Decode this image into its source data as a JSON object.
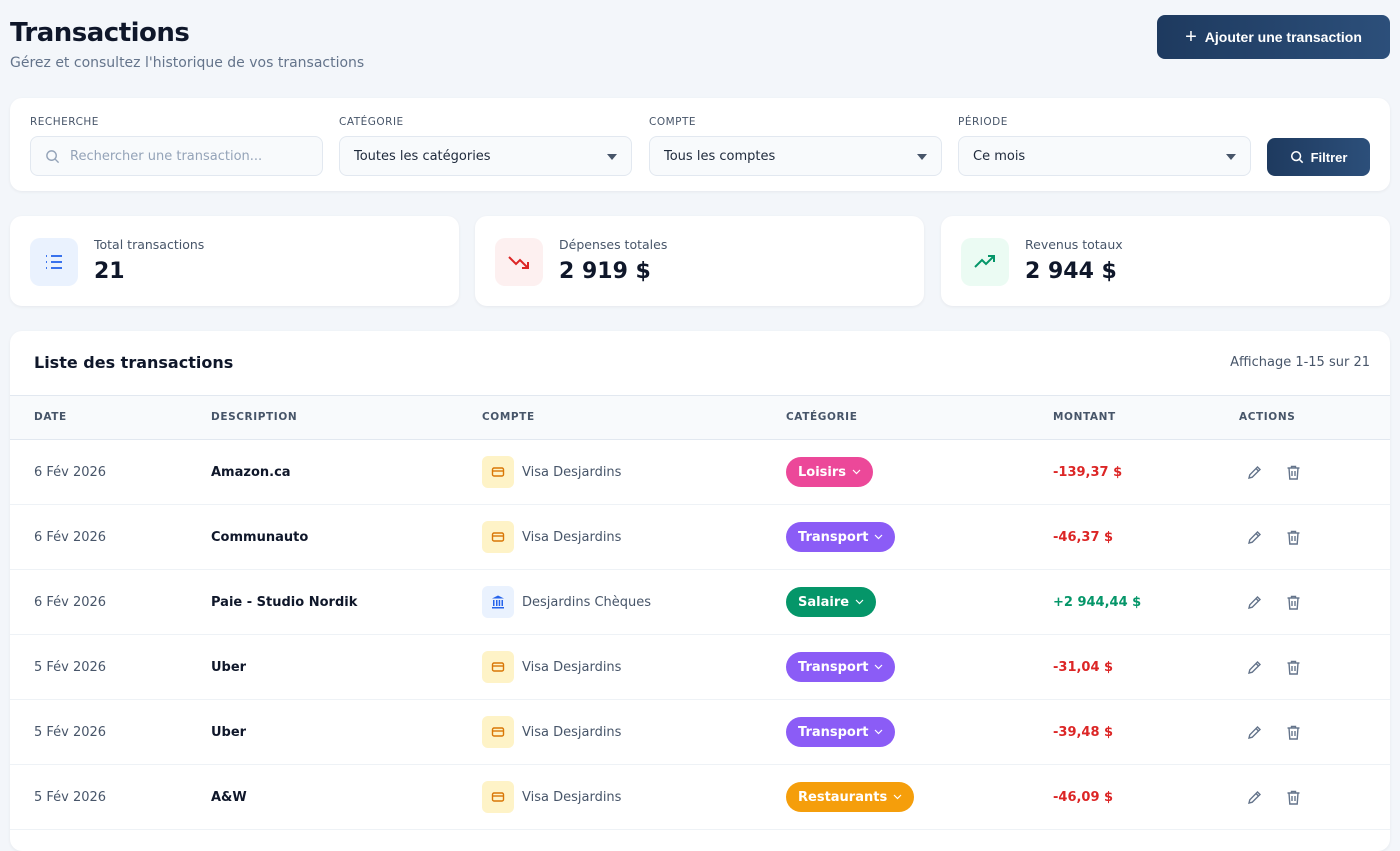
{
  "header": {
    "title": "Transactions",
    "subtitle": "Gérez et consultez l'historique de vos transactions",
    "add_button": "Ajouter une transaction"
  },
  "filters": {
    "search": {
      "label": "RECHERCHE",
      "placeholder": "Rechercher une transaction..."
    },
    "category": {
      "label": "CATÉGORIE",
      "value": "Toutes les catégories"
    },
    "account": {
      "label": "COMPTE",
      "value": "Tous les comptes"
    },
    "period": {
      "label": "PÉRIODE",
      "value": "Ce mois"
    },
    "button": "Filtrer"
  },
  "stats": [
    {
      "label": "Total transactions",
      "value": "21",
      "icon": "list-icon",
      "color": "#2563eb",
      "bg": "#eaf2fe"
    },
    {
      "label": "Dépenses totales",
      "value": "2 919 $",
      "icon": "trending-down-icon",
      "color": "#dc2626",
      "bg": "#fdf0f0"
    },
    {
      "label": "Revenus totaux",
      "value": "2 944 $",
      "icon": "trending-up-icon",
      "color": "#059669",
      "bg": "#ebfbf3"
    }
  ],
  "table": {
    "title": "Liste des transactions",
    "info": "Affichage 1-15 sur 21",
    "columns": [
      "DATE",
      "DESCRIPTION",
      "COMPTE",
      "CATÉGORIE",
      "MONTANT",
      "ACTIONS"
    ],
    "rows": [
      {
        "date": "6 Fév 2026",
        "description": "Amazon.ca",
        "account": "Visa Desjardins",
        "account_icon": "credit-card-icon",
        "category": "Loisirs",
        "category_color": "#ec4899",
        "amount": "-139,37 $",
        "amount_color": "#dc2626"
      },
      {
        "date": "6 Fév 2026",
        "description": "Communauto",
        "account": "Visa Desjardins",
        "account_icon": "credit-card-icon",
        "category": "Transport",
        "category_color": "#8b5cf6",
        "amount": "-46,37 $",
        "amount_color": "#dc2626"
      },
      {
        "date": "6 Fév 2026",
        "description": "Paie - Studio Nordik",
        "account": "Desjardins Chèques",
        "account_icon": "bank-icon",
        "category": "Salaire",
        "category_color": "#059669",
        "amount": "+2 944,44 $",
        "amount_color": "#059669"
      },
      {
        "date": "5 Fév 2026",
        "description": "Uber",
        "account": "Visa Desjardins",
        "account_icon": "credit-card-icon",
        "category": "Transport",
        "category_color": "#8b5cf6",
        "amount": "-31,04 $",
        "amount_color": "#dc2626"
      },
      {
        "date": "5 Fév 2026",
        "description": "Uber",
        "account": "Visa Desjardins",
        "account_icon": "credit-card-icon",
        "category": "Transport",
        "category_color": "#8b5cf6",
        "amount": "-39,48 $",
        "amount_color": "#dc2626"
      },
      {
        "date": "5 Fév 2026",
        "description": "A&W",
        "account": "Visa Desjardins",
        "account_icon": "credit-card-icon",
        "category": "Restaurants",
        "category_color": "#f59e0b",
        "amount": "-46,09 $",
        "amount_color": "#dc2626"
      }
    ]
  }
}
